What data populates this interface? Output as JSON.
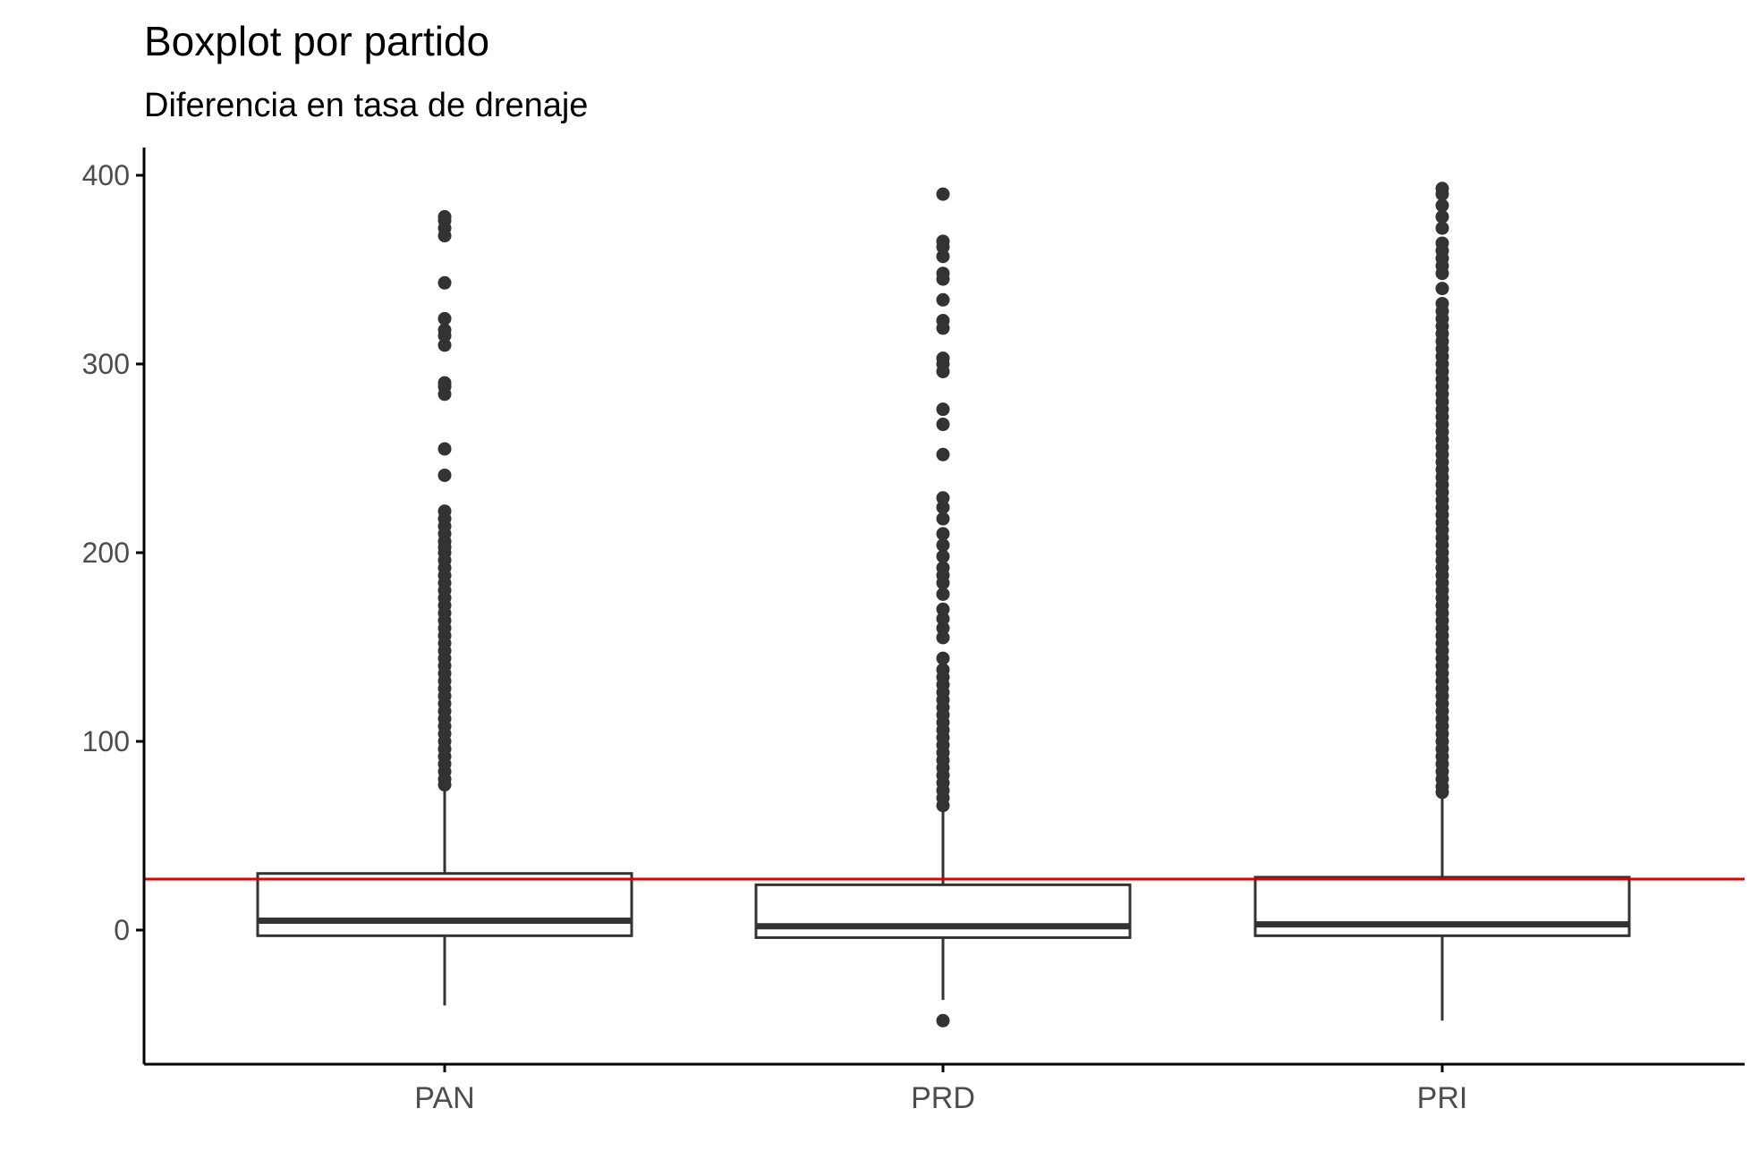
{
  "chart_data": {
    "type": "boxplot",
    "title": "Boxplot por partido",
    "subtitle": "Diferencia en tasa de drenaje",
    "xlabel": "",
    "ylabel": "",
    "ylim": [
      -70,
      415
    ],
    "yticks": [
      0,
      100,
      200,
      300,
      400
    ],
    "categories": [
      "PAN",
      "PRD",
      "PRI"
    ],
    "reference_line": {
      "y": 27,
      "color": "#e00000"
    },
    "colors": {
      "box": "#333333",
      "axis": "#000000",
      "points": "#333333"
    },
    "grid": false,
    "legend": "none",
    "boxes": [
      {
        "category": "PAN",
        "whisker_low": -40,
        "q1": -3,
        "median": 5,
        "q3": 30,
        "whisker_high": 75,
        "outliers": [
          77,
          80,
          84,
          88,
          92,
          96,
          100,
          104,
          108,
          112,
          116,
          120,
          124,
          128,
          132,
          136,
          140,
          144,
          148,
          152,
          156,
          160,
          164,
          168,
          172,
          176,
          180,
          184,
          188,
          192,
          196,
          200,
          203,
          206,
          210,
          214,
          218,
          222,
          241,
          255,
          284,
          288,
          290,
          310,
          315,
          318,
          324,
          343,
          368,
          372,
          376,
          378
        ]
      },
      {
        "category": "PRD",
        "whisker_low": -37,
        "q1": -4,
        "median": 2,
        "q3": 24,
        "whisker_high": 64,
        "outliers": [
          -48,
          66,
          70,
          74,
          78,
          82,
          86,
          90,
          94,
          98,
          102,
          106,
          110,
          114,
          118,
          122,
          126,
          130,
          134,
          138,
          144,
          155,
          160,
          165,
          170,
          178,
          184,
          188,
          192,
          198,
          204,
          210,
          218,
          224,
          229,
          252,
          268,
          276,
          296,
          300,
          303,
          319,
          323,
          334,
          345,
          348,
          357,
          362,
          365,
          390
        ]
      },
      {
        "category": "PRI",
        "whisker_low": -48,
        "q1": -3,
        "median": 3,
        "q3": 28,
        "whisker_high": 72,
        "outliers": [
          73,
          76,
          80,
          84,
          88,
          92,
          96,
          100,
          104,
          108,
          112,
          116,
          120,
          124,
          128,
          132,
          136,
          140,
          144,
          148,
          152,
          156,
          160,
          164,
          168,
          172,
          176,
          180,
          184,
          188,
          192,
          196,
          200,
          204,
          208,
          212,
          216,
          220,
          224,
          228,
          232,
          236,
          240,
          244,
          248,
          252,
          256,
          260,
          264,
          268,
          272,
          276,
          280,
          284,
          288,
          292,
          296,
          300,
          304,
          308,
          312,
          316,
          320,
          324,
          328,
          332,
          340,
          348,
          352,
          356,
          360,
          364,
          372,
          378,
          384,
          390,
          393
        ]
      }
    ]
  }
}
